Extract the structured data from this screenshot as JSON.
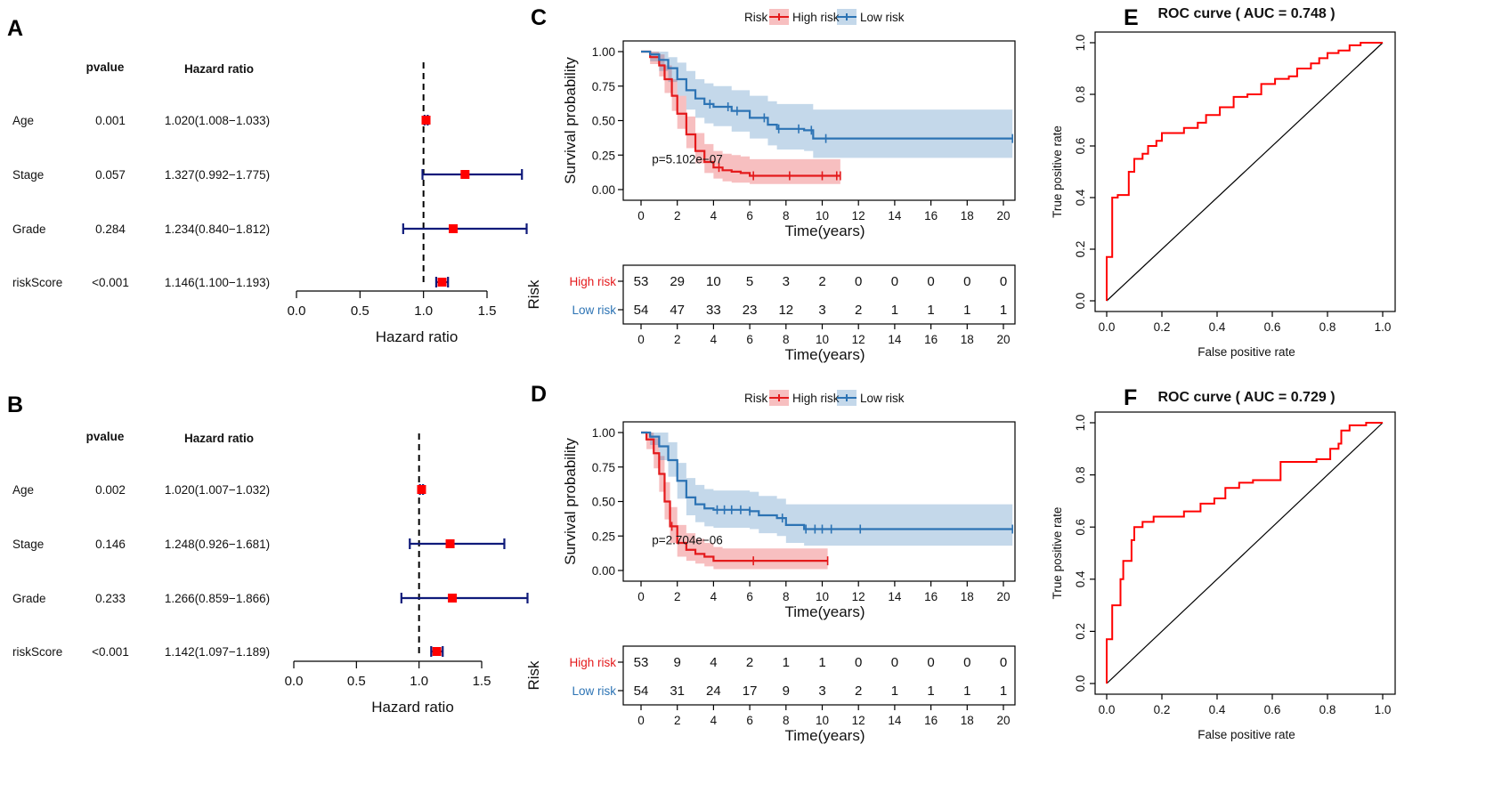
{
  "chart_data": [
    {
      "panel": "A",
      "type": "forest",
      "headers": {
        "p": "pvalue",
        "hr": "Hazard ratio"
      },
      "rows": [
        {
          "var": "Age",
          "p": "0.001",
          "hr_text": "1.020(1.008−1.033)",
          "hr": 1.02,
          "lo": 1.008,
          "hi": 1.033
        },
        {
          "var": "Stage",
          "p": "0.057",
          "hr_text": "1.327(0.992−1.775)",
          "hr": 1.327,
          "lo": 0.992,
          "hi": 1.775
        },
        {
          "var": "Grade",
          "p": "0.284",
          "hr_text": "1.234(0.840−1.812)",
          "hr": 1.234,
          "lo": 0.84,
          "hi": 1.812
        },
        {
          "var": "riskScore",
          "p": "<0.001",
          "hr_text": "1.146(1.100−1.193)",
          "hr": 1.146,
          "lo": 1.1,
          "hi": 1.193
        }
      ],
      "xticks": [
        0.0,
        0.5,
        1.0,
        1.5
      ],
      "xtick_labels": [
        "0.0",
        "0.5",
        "1.0",
        "1.5"
      ],
      "xlim": [
        0,
        1.5
      ],
      "ref": 1.0,
      "xlabel": "Hazard ratio"
    },
    {
      "panel": "B",
      "type": "forest",
      "headers": {
        "p": "pvalue",
        "hr": "Hazard ratio"
      },
      "rows": [
        {
          "var": "Age",
          "p": "0.002",
          "hr_text": "1.020(1.007−1.032)",
          "hr": 1.02,
          "lo": 1.007,
          "hi": 1.032
        },
        {
          "var": "Stage",
          "p": "0.146",
          "hr_text": "1.248(0.926−1.681)",
          "hr": 1.248,
          "lo": 0.926,
          "hi": 1.681
        },
        {
          "var": "Grade",
          "p": "0.233",
          "hr_text": "1.266(0.859−1.866)",
          "hr": 1.266,
          "lo": 0.859,
          "hi": 1.866
        },
        {
          "var": "riskScore",
          "p": "<0.001",
          "hr_text": "1.142(1.097−1.189)",
          "hr": 1.142,
          "lo": 1.097,
          "hi": 1.189
        }
      ],
      "xticks": [
        0.0,
        0.5,
        1.0,
        1.5
      ],
      "xtick_labels": [
        "0.0",
        "0.5",
        "1.0",
        "1.5"
      ],
      "xlim": [
        0,
        1.5
      ],
      "ref": 1.0,
      "xlabel": "Hazard ratio"
    },
    {
      "panel": "C",
      "type": "line",
      "legend": {
        "title": "Risk",
        "entries": [
          "High risk",
          "Low risk"
        ]
      },
      "xlabel": "Time(years)",
      "ylabel": "Survival probability",
      "xlim": [
        0,
        20
      ],
      "ylim": [
        0,
        1
      ],
      "xticks": [
        0,
        2,
        4,
        6,
        8,
        10,
        12,
        14,
        16,
        18,
        20
      ],
      "xtick_labels": [
        "0",
        "2",
        "4",
        "6",
        "8",
        "10",
        "12",
        "14",
        "16",
        "18",
        "20"
      ],
      "yticks": [
        0,
        0.25,
        0.5,
        0.75,
        1.0
      ],
      "ytick_labels": [
        "0.00",
        "0.25",
        "0.50",
        "0.75",
        "1.00"
      ],
      "pvalue_text": "p=5.102e−07",
      "series": [
        {
          "name": "High risk",
          "color": "#e41a1c",
          "t": [
            0,
            0.5,
            1.0,
            1.3,
            1.7,
            2.0,
            2.5,
            3.0,
            3.5,
            4.0,
            4.5,
            5.0,
            5.5,
            6.0,
            11.0
          ],
          "s": [
            1.0,
            0.96,
            0.9,
            0.8,
            0.68,
            0.55,
            0.4,
            0.28,
            0.2,
            0.16,
            0.14,
            0.13,
            0.12,
            0.1,
            0.1
          ],
          "lo": [
            1.0,
            0.91,
            0.82,
            0.7,
            0.57,
            0.44,
            0.3,
            0.19,
            0.12,
            0.08,
            0.06,
            0.05,
            0.05,
            0.04,
            0.04
          ],
          "hi": [
            1.0,
            1.0,
            0.98,
            0.9,
            0.8,
            0.68,
            0.53,
            0.41,
            0.33,
            0.28,
            0.26,
            0.25,
            0.24,
            0.22,
            0.22
          ],
          "censor": [
            4.3,
            6.2,
            8.2,
            10.0,
            10.8,
            11.0
          ]
        },
        {
          "name": "Low risk",
          "color": "#2c73b4",
          "t": [
            0,
            0.5,
            1.0,
            1.5,
            2.0,
            2.5,
            3.0,
            3.5,
            4.0,
            5.0,
            6.0,
            7.0,
            7.5,
            9.0,
            9.5,
            12.0,
            20.5
          ],
          "s": [
            1.0,
            0.98,
            0.94,
            0.88,
            0.8,
            0.72,
            0.66,
            0.62,
            0.6,
            0.57,
            0.52,
            0.47,
            0.44,
            0.43,
            0.37,
            0.37,
            0.37
          ],
          "lo": [
            1.0,
            0.93,
            0.86,
            0.78,
            0.68,
            0.58,
            0.52,
            0.48,
            0.46,
            0.42,
            0.37,
            0.32,
            0.29,
            0.28,
            0.23,
            0.23,
            0.23
          ],
          "hi": [
            1.0,
            1.0,
            1.0,
            0.96,
            0.92,
            0.86,
            0.8,
            0.77,
            0.75,
            0.72,
            0.68,
            0.64,
            0.62,
            0.62,
            0.58,
            0.58,
            0.58
          ],
          "censor": [
            3.8,
            4.8,
            5.3,
            6.8,
            7.6,
            8.7,
            9.4,
            10.2,
            20.5
          ]
        }
      ],
      "risk_table": {
        "title": "Risk",
        "rows": [
          {
            "label": "High risk",
            "counts": [
              53,
              29,
              10,
              5,
              3,
              2,
              0,
              0,
              0,
              0,
              0
            ]
          },
          {
            "label": "Low risk",
            "counts": [
              54,
              47,
              33,
              23,
              12,
              3,
              2,
              1,
              1,
              1,
              1
            ]
          }
        ],
        "xlabel": "Time(years)"
      }
    },
    {
      "panel": "D",
      "type": "line",
      "legend": {
        "title": "Risk",
        "entries": [
          "High risk",
          "Low risk"
        ]
      },
      "xlabel": "Time(years)",
      "ylabel": "Survival probability",
      "xlim": [
        0,
        20
      ],
      "ylim": [
        0,
        1
      ],
      "xticks": [
        0,
        2,
        4,
        6,
        8,
        10,
        12,
        14,
        16,
        18,
        20
      ],
      "xtick_labels": [
        "0",
        "2",
        "4",
        "6",
        "8",
        "10",
        "12",
        "14",
        "16",
        "18",
        "20"
      ],
      "yticks": [
        0,
        0.25,
        0.5,
        0.75,
        1.0
      ],
      "ytick_labels": [
        "0.00",
        "0.25",
        "0.50",
        "0.75",
        "1.00"
      ],
      "pvalue_text": "p=2.704e−06",
      "series": [
        {
          "name": "High risk",
          "color": "#e41a1c",
          "t": [
            0,
            0.3,
            0.7,
            1.0,
            1.3,
            1.6,
            2.0,
            2.5,
            3.0,
            3.5,
            4.0,
            4.5,
            10.3
          ],
          "s": [
            1.0,
            0.95,
            0.85,
            0.7,
            0.5,
            0.32,
            0.2,
            0.15,
            0.12,
            0.1,
            0.07,
            0.07,
            0.07
          ],
          "lo": [
            1.0,
            0.88,
            0.74,
            0.57,
            0.37,
            0.2,
            0.1,
            0.07,
            0.05,
            0.03,
            0.01,
            0.01,
            0.01
          ],
          "hi": [
            1.0,
            1.0,
            0.96,
            0.83,
            0.64,
            0.46,
            0.33,
            0.27,
            0.23,
            0.2,
            0.17,
            0.16,
            0.16
          ],
          "censor": [
            1.7,
            6.2,
            10.3
          ]
        },
        {
          "name": "Low risk",
          "color": "#2c73b4",
          "t": [
            0,
            0.5,
            1.0,
            1.5,
            2.0,
            2.5,
            3.0,
            3.5,
            4.0,
            6.0,
            6.5,
            7.5,
            8.0,
            9.0,
            20.5
          ],
          "s": [
            1.0,
            0.97,
            0.9,
            0.8,
            0.65,
            0.53,
            0.48,
            0.45,
            0.44,
            0.43,
            0.4,
            0.38,
            0.33,
            0.3,
            0.3
          ],
          "lo": [
            1.0,
            0.91,
            0.8,
            0.68,
            0.52,
            0.4,
            0.35,
            0.32,
            0.31,
            0.3,
            0.27,
            0.25,
            0.2,
            0.18,
            0.18
          ],
          "hi": [
            1.0,
            1.0,
            1.0,
            0.93,
            0.78,
            0.67,
            0.62,
            0.59,
            0.58,
            0.57,
            0.54,
            0.52,
            0.48,
            0.48,
            0.48
          ],
          "censor": [
            4.2,
            4.6,
            5.0,
            5.5,
            6.0,
            7.8,
            9.1,
            9.6,
            10.0,
            10.5,
            12.1,
            20.5
          ]
        }
      ],
      "risk_table": {
        "title": "Risk",
        "rows": [
          {
            "label": "High risk",
            "counts": [
              53,
              9,
              4,
              2,
              1,
              1,
              0,
              0,
              0,
              0,
              0
            ]
          },
          {
            "label": "Low risk",
            "counts": [
              54,
              31,
              24,
              17,
              9,
              3,
              2,
              1,
              1,
              1,
              1
            ]
          }
        ],
        "xlabel": "Time(years)"
      }
    },
    {
      "panel": "E",
      "type": "line",
      "title": "ROC curve ( AUC =  0.748 )",
      "xlabel": "False positive rate",
      "ylabel": "True positive rate",
      "xlim": [
        0,
        1
      ],
      "ylim": [
        0,
        1
      ],
      "xticks": [
        0,
        0.2,
        0.4,
        0.6,
        0.8,
        1.0
      ],
      "xtick_labels": [
        "0.0",
        "0.2",
        "0.4",
        "0.6",
        "0.8",
        "1.0"
      ],
      "yticks": [
        0,
        0.2,
        0.4,
        0.6,
        0.8,
        1.0
      ],
      "ytick_labels": [
        "0.0",
        "0.2",
        "0.4",
        "0.6",
        "0.8",
        "1.0"
      ],
      "color": "#ff0000",
      "fpr": [
        0,
        0,
        0.02,
        0.02,
        0.04,
        0.04,
        0.08,
        0.08,
        0.1,
        0.1,
        0.13,
        0.13,
        0.15,
        0.15,
        0.18,
        0.18,
        0.2,
        0.2,
        0.28,
        0.28,
        0.33,
        0.33,
        0.36,
        0.36,
        0.41,
        0.41,
        0.46,
        0.46,
        0.51,
        0.51,
        0.56,
        0.56,
        0.61,
        0.61,
        0.66,
        0.66,
        0.69,
        0.69,
        0.74,
        0.74,
        0.77,
        0.77,
        0.8,
        0.8,
        0.84,
        0.84,
        0.88,
        0.88,
        0.92,
        0.92,
        1.0
      ],
      "tpr": [
        0,
        0.17,
        0.17,
        0.4,
        0.4,
        0.41,
        0.41,
        0.5,
        0.5,
        0.55,
        0.55,
        0.57,
        0.57,
        0.6,
        0.6,
        0.62,
        0.62,
        0.65,
        0.65,
        0.67,
        0.67,
        0.69,
        0.69,
        0.72,
        0.72,
        0.75,
        0.75,
        0.79,
        0.79,
        0.8,
        0.8,
        0.84,
        0.84,
        0.86,
        0.86,
        0.87,
        0.87,
        0.9,
        0.9,
        0.92,
        0.92,
        0.94,
        0.94,
        0.96,
        0.96,
        0.97,
        0.97,
        0.99,
        0.99,
        1.0,
        1.0
      ]
    },
    {
      "panel": "F",
      "type": "line",
      "title": "ROC curve ( AUC =  0.729 )",
      "xlabel": "False positive rate",
      "ylabel": "True positive rate",
      "xlim": [
        0,
        1
      ],
      "ylim": [
        0,
        1
      ],
      "xticks": [
        0,
        0.2,
        0.4,
        0.6,
        0.8,
        1.0
      ],
      "xtick_labels": [
        "0.0",
        "0.2",
        "0.4",
        "0.6",
        "0.8",
        "1.0"
      ],
      "yticks": [
        0,
        0.2,
        0.4,
        0.6,
        0.8,
        1.0
      ],
      "ytick_labels": [
        "0.0",
        "0.2",
        "0.4",
        "0.6",
        "0.8",
        "1.0"
      ],
      "color": "#ff0000",
      "fpr": [
        0,
        0,
        0.02,
        0.02,
        0.05,
        0.05,
        0.06,
        0.06,
        0.09,
        0.09,
        0.1,
        0.1,
        0.13,
        0.13,
        0.17,
        0.17,
        0.28,
        0.28,
        0.34,
        0.34,
        0.39,
        0.39,
        0.43,
        0.43,
        0.48,
        0.48,
        0.53,
        0.53,
        0.63,
        0.63,
        0.76,
        0.76,
        0.81,
        0.81,
        0.84,
        0.84,
        0.85,
        0.85,
        0.88,
        0.88,
        0.94,
        0.94,
        1.0
      ],
      "tpr": [
        0,
        0.17,
        0.17,
        0.3,
        0.3,
        0.4,
        0.4,
        0.47,
        0.47,
        0.55,
        0.55,
        0.6,
        0.6,
        0.62,
        0.62,
        0.64,
        0.64,
        0.66,
        0.66,
        0.69,
        0.69,
        0.71,
        0.71,
        0.75,
        0.75,
        0.77,
        0.77,
        0.78,
        0.78,
        0.85,
        0.85,
        0.86,
        0.86,
        0.9,
        0.9,
        0.92,
        0.92,
        0.97,
        0.97,
        0.99,
        0.99,
        1.0,
        1.0
      ]
    }
  ]
}
